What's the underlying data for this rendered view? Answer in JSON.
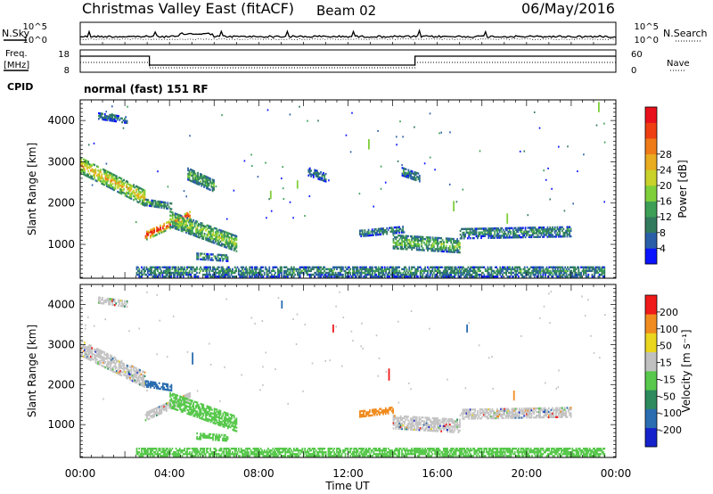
{
  "header": {
    "title": "Christmas Valley East (fitACF)",
    "beam": "Beam 02",
    "date": "06/May/2016"
  },
  "status": {
    "nsky_label": "N.Sky",
    "nsearch_label": "N.Search",
    "freq_label_1": "Freq.",
    "freq_label_2": "[MHz]",
    "nave_label": "Nave",
    "cpid_label": "CPID",
    "cpid_text": "normal (fast) 151 RF",
    "noise_ticks": [
      "10^5",
      "10^0"
    ],
    "freq_ticks": [
      "18",
      "8"
    ],
    "nave_ticks": [
      "60",
      "0"
    ]
  },
  "chart_data": [
    {
      "type": "heatmap",
      "panel": "power",
      "xlabel": "",
      "ylabel": "Slant Range [km]",
      "xlim": [
        0,
        24
      ],
      "ylim": [
        180,
        4500
      ],
      "y_ticks": [
        "1000",
        "2000",
        "3000",
        "4000"
      ],
      "colorbar_label": "Power [dB]",
      "colorbar_ticks": [
        "4",
        "8",
        "12",
        "16",
        "20",
        "24",
        "28"
      ],
      "colorscale": [
        "#0a14ff",
        "#2a5fa8",
        "#317a5e",
        "#3c9f55",
        "#7fcf3a",
        "#c8d22a",
        "#e9ab1f",
        "#ef7a18",
        "#ee3e12",
        "#e8101a"
      ],
      "echo_regions": [
        {
          "t0": 0.0,
          "t1": 2.9,
          "r0": 2900,
          "r1": 2100,
          "w": 380,
          "lvl": 0.66
        },
        {
          "t0": 2.9,
          "t1": 4.9,
          "r0": 1200,
          "r1": 1700,
          "w": 220,
          "lvl": 0.95
        },
        {
          "t0": 4.0,
          "t1": 7.0,
          "r0": 1600,
          "r1": 1000,
          "w": 380,
          "lvl": 0.5
        },
        {
          "t0": 2.9,
          "t1": 4.1,
          "r0": 2000,
          "r1": 1900,
          "w": 140,
          "lvl": 0.4
        },
        {
          "t0": 4.8,
          "t1": 6.0,
          "r0": 2700,
          "r1": 2400,
          "w": 300,
          "lvl": 0.4
        },
        {
          "t0": 5.2,
          "t1": 6.6,
          "r0": 700,
          "r1": 650,
          "w": 150,
          "lvl": 0.35
        },
        {
          "t0": 10.2,
          "t1": 11.0,
          "r0": 2750,
          "r1": 2600,
          "w": 200,
          "lvl": 0.25
        },
        {
          "t0": 12.5,
          "t1": 14.5,
          "r0": 1250,
          "r1": 1350,
          "w": 150,
          "lvl": 0.3
        },
        {
          "t0": 14.0,
          "t1": 17.0,
          "r0": 1050,
          "r1": 950,
          "w": 330,
          "lvl": 0.45
        },
        {
          "t0": 17.0,
          "t1": 22.0,
          "r0": 1250,
          "r1": 1300,
          "w": 250,
          "lvl": 0.3
        },
        {
          "t0": 0.8,
          "t1": 2.1,
          "r0": 4100,
          "r1": 4000,
          "w": 160,
          "lvl": 0.25
        },
        {
          "t0": 14.4,
          "t1": 15.2,
          "r0": 2750,
          "r1": 2600,
          "w": 200,
          "lvl": 0.3
        },
        {
          "t0": 2.5,
          "t1": 23.5,
          "r0": 330,
          "r1": 330,
          "w": 260,
          "lvl": 0.3
        }
      ],
      "streaks": [
        {
          "t": 9.7,
          "r0": 2350,
          "r1": 2550
        },
        {
          "t": 12.9,
          "r0": 3300,
          "r1": 3550
        },
        {
          "t": 19.1,
          "r0": 1500,
          "r1": 1750
        },
        {
          "t": 16.7,
          "r0": 1800,
          "r1": 2050
        },
        {
          "t": 23.2,
          "r0": 4200,
          "r1": 4450
        },
        {
          "t": 8.5,
          "r0": 2100,
          "r1": 2300
        }
      ]
    },
    {
      "type": "heatmap",
      "panel": "velocity",
      "xlabel": "Time UT",
      "ylabel": "Slant Range [km]",
      "xlim": [
        0,
        24
      ],
      "ylim": [
        180,
        4500
      ],
      "x_ticks": [
        "00:00",
        "04:00",
        "08:00",
        "12:00",
        "16:00",
        "20:00",
        "00:00"
      ],
      "y_ticks": [
        "1000",
        "2000",
        "3000",
        "4000"
      ],
      "colorbar_label": "Velocity [m s⁻¹]",
      "colorbar_ticks": [
        "200",
        "100",
        "50",
        "15",
        "-15",
        "-50",
        "-100",
        "-200"
      ],
      "colorscale": [
        "#1522cc",
        "#2a6db0",
        "#2c8a5c",
        "#58c84c",
        "#c0c0c0",
        "#ead51f",
        "#f08c1f",
        "#ef1a1a"
      ],
      "echo_regions": [
        {
          "t0": 0.0,
          "t1": 2.9,
          "r0": 2900,
          "r1": 2100,
          "w": 380,
          "cls": "gray"
        },
        {
          "t0": 2.9,
          "t1": 4.9,
          "r0": 1200,
          "r1": 1700,
          "w": 220,
          "cls": "gray"
        },
        {
          "t0": 4.0,
          "t1": 7.0,
          "r0": 1600,
          "r1": 1000,
          "w": 380,
          "cls": "green"
        },
        {
          "t0": 2.9,
          "t1": 4.1,
          "r0": 2000,
          "r1": 1900,
          "w": 140,
          "cls": "blue"
        },
        {
          "t0": 5.2,
          "t1": 6.6,
          "r0": 700,
          "r1": 650,
          "w": 150,
          "cls": "green"
        },
        {
          "t0": 12.5,
          "t1": 14.0,
          "r0": 1250,
          "r1": 1350,
          "w": 150,
          "cls": "orange"
        },
        {
          "t0": 14.0,
          "t1": 17.0,
          "r0": 1050,
          "r1": 950,
          "w": 330,
          "cls": "gray"
        },
        {
          "t0": 17.0,
          "t1": 22.0,
          "r0": 1250,
          "r1": 1300,
          "w": 250,
          "cls": "gray"
        },
        {
          "t0": 0.8,
          "t1": 2.1,
          "r0": 4100,
          "r1": 4000,
          "w": 160,
          "cls": "gray"
        },
        {
          "t0": 2.5,
          "t1": 23.5,
          "r0": 300,
          "r1": 300,
          "w": 200,
          "cls": "green"
        }
      ],
      "streaks": [
        {
          "t": 5.0,
          "r0": 2500,
          "r1": 2800,
          "cls": "blue"
        },
        {
          "t": 13.8,
          "r0": 2100,
          "r1": 2400,
          "cls": "red"
        },
        {
          "t": 17.3,
          "r0": 3300,
          "r1": 3500,
          "cls": "blue"
        },
        {
          "t": 19.4,
          "r0": 1600,
          "r1": 1850,
          "cls": "orange"
        },
        {
          "t": 11.3,
          "r0": 3300,
          "r1": 3500,
          "cls": "red"
        },
        {
          "t": 9.0,
          "r0": 3900,
          "r1": 4100,
          "cls": "blue"
        }
      ]
    }
  ]
}
